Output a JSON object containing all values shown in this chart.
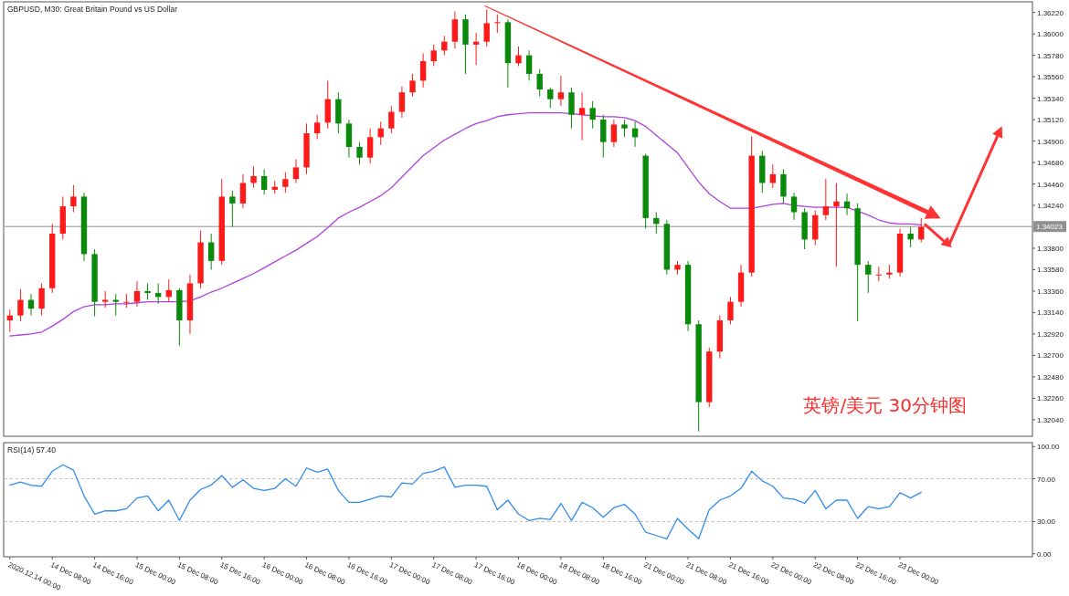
{
  "chart_data": [
    {
      "type": "candlestick",
      "title": "GBPUSD, M30:  Great Britain Pound vs US Dollar",
      "categories": [
        null,
        null,
        null,
        null,
        null,
        null,
        null,
        null,
        null,
        null,
        null,
        null,
        null,
        null,
        null,
        null,
        null,
        null,
        null,
        null,
        null,
        null,
        null,
        null,
        null,
        null,
        null,
        null,
        null,
        null,
        null,
        null,
        null,
        null,
        null,
        null,
        null,
        null,
        null,
        null,
        null,
        null,
        null,
        null,
        null,
        null,
        null,
        null,
        null,
        null,
        null,
        null,
        null,
        null,
        null,
        null,
        null,
        null,
        null,
        null,
        null,
        null,
        null,
        null,
        null,
        null,
        null,
        null,
        null,
        null,
        null,
        null,
        null,
        null,
        null,
        null,
        null,
        null,
        null,
        null,
        null,
        null,
        null,
        null,
        null,
        null,
        null,
        null,
        null,
        null,
        null,
        null,
        null,
        null,
        null,
        null,
        null
      ],
      "ohlc": [
        [
          1.3306,
          1.3317,
          1.3294,
          1.3311
        ],
        [
          1.3311,
          1.3338,
          1.3305,
          1.3327
        ],
        [
          1.3327,
          1.3333,
          1.3311,
          1.3318
        ],
        [
          1.3318,
          1.3344,
          1.3311,
          1.3339
        ],
        [
          1.3339,
          1.3405,
          1.3334,
          1.3395
        ],
        [
          1.3395,
          1.3433,
          1.3389,
          1.3423
        ],
        [
          1.3423,
          1.3445,
          1.3417,
          1.3433
        ],
        [
          1.3433,
          1.3437,
          1.3367,
          1.3374
        ],
        [
          1.3374,
          1.3379,
          1.331,
          1.3325
        ],
        [
          1.3325,
          1.3336,
          1.3319,
          1.3327
        ],
        [
          1.3327,
          1.3333,
          1.3311,
          1.3325
        ],
        [
          1.3325,
          1.3333,
          1.3319,
          1.3325
        ],
        [
          1.3325,
          1.3346,
          1.332,
          1.3336
        ],
        [
          1.3336,
          1.3344,
          1.3327,
          1.3334
        ],
        [
          1.3334,
          1.3344,
          1.3323,
          1.333
        ],
        [
          1.333,
          1.3348,
          1.3325,
          1.3337
        ],
        [
          1.3337,
          1.3339,
          1.328,
          1.3306
        ],
        [
          1.3306,
          1.3353,
          1.3292,
          1.3344
        ],
        [
          1.3344,
          1.3398,
          1.3339,
          1.3386
        ],
        [
          1.3386,
          1.3395,
          1.3358,
          1.3367
        ],
        [
          1.3367,
          1.3451,
          1.3363,
          1.3433
        ],
        [
          1.3433,
          1.3439,
          1.3402,
          1.3426
        ],
        [
          1.3426,
          1.3456,
          1.3421,
          1.3447
        ],
        [
          1.3447,
          1.3464,
          1.3442,
          1.3454
        ],
        [
          1.3454,
          1.3461,
          1.3435,
          1.344
        ],
        [
          1.344,
          1.3449,
          1.3436,
          1.3443
        ],
        [
          1.3443,
          1.3458,
          1.3437,
          1.3451
        ],
        [
          1.3451,
          1.3471,
          1.3447,
          1.3463
        ],
        [
          1.3463,
          1.3508,
          1.3456,
          1.3498
        ],
        [
          1.3498,
          1.3517,
          1.3492,
          1.3509
        ],
        [
          1.3509,
          1.3552,
          1.3503,
          1.3533
        ],
        [
          1.3533,
          1.354,
          1.3498,
          1.3508
        ],
        [
          1.3508,
          1.3512,
          1.3473,
          1.3484
        ],
        [
          1.3484,
          1.3489,
          1.3466,
          1.3473
        ],
        [
          1.3473,
          1.3503,
          1.3467,
          1.3494
        ],
        [
          1.3494,
          1.351,
          1.3486,
          1.3503
        ],
        [
          1.3503,
          1.3526,
          1.3498,
          1.352
        ],
        [
          1.352,
          1.3546,
          1.3514,
          1.354
        ],
        [
          1.354,
          1.3559,
          1.3536,
          1.3552
        ],
        [
          1.3552,
          1.358,
          1.3545,
          1.3572
        ],
        [
          1.3572,
          1.3589,
          1.3567,
          1.3583
        ],
        [
          1.3583,
          1.3598,
          1.3578,
          1.3592
        ],
        [
          1.3592,
          1.3623,
          1.3585,
          1.3615
        ],
        [
          1.3615,
          1.362,
          1.3559,
          1.3589
        ],
        [
          1.3589,
          1.3601,
          1.3568,
          1.3592
        ],
        [
          1.3592,
          1.3625,
          1.3587,
          1.3611
        ],
        [
          1.3611,
          1.362,
          1.3601,
          1.3612
        ],
        [
          1.3612,
          1.3615,
          1.3545,
          1.357
        ],
        [
          1.357,
          1.3587,
          1.3567,
          1.3578
        ],
        [
          1.3578,
          1.3583,
          1.3552,
          1.3559
        ],
        [
          1.3559,
          1.3564,
          1.3536,
          1.3543
        ],
        [
          1.3543,
          1.3545,
          1.3524,
          1.3533
        ],
        [
          1.3533,
          1.3557,
          1.3526,
          1.354
        ],
        [
          1.354,
          1.3545,
          1.3503,
          1.3517
        ],
        [
          1.3517,
          1.354,
          1.3491,
          1.3524
        ],
        [
          1.3524,
          1.3531,
          1.3503,
          1.3512
        ],
        [
          1.3512,
          1.3517,
          1.3473,
          1.3489
        ],
        [
          1.3489,
          1.3512,
          1.3484,
          1.3507
        ],
        [
          1.3507,
          1.3512,
          1.3494,
          1.3503
        ],
        [
          1.3503,
          1.351,
          1.3484,
          1.3494
        ],
        [
          1.3475,
          1.3477,
          1.34,
          1.3411
        ],
        [
          1.3411,
          1.3417,
          1.3395,
          1.3405
        ],
        [
          1.3405,
          1.3409,
          1.3353,
          1.3358
        ],
        [
          1.3358,
          1.3367,
          1.3353,
          1.3363
        ],
        [
          1.3363,
          1.3367,
          1.3295,
          1.3302
        ],
        [
          1.3302,
          1.3306,
          1.3192,
          1.3222
        ],
        [
          1.3222,
          1.3278,
          1.3217,
          1.3274
        ],
        [
          1.3274,
          1.3311,
          1.3267,
          1.3306
        ],
        [
          1.3306,
          1.333,
          1.3302,
          1.3325
        ],
        [
          1.3325,
          1.3363,
          1.332,
          1.3355
        ],
        [
          1.3355,
          1.3495,
          1.3351,
          1.3475
        ],
        [
          1.3475,
          1.348,
          1.3437,
          1.3447
        ],
        [
          1.3447,
          1.3466,
          1.3442,
          1.3456
        ],
        [
          1.3456,
          1.3461,
          1.3426,
          1.3433
        ],
        [
          1.3433,
          1.3437,
          1.3409,
          1.3417
        ],
        [
          1.3417,
          1.3421,
          1.3379,
          1.3389
        ],
        [
          1.3389,
          1.3419,
          1.3383,
          1.3414
        ],
        [
          1.3414,
          1.3451,
          1.3409,
          1.3423
        ],
        [
          1.3423,
          1.3447,
          1.3361,
          1.3428
        ],
        [
          1.3428,
          1.3436,
          1.3414,
          1.3421
        ],
        [
          1.3421,
          1.3426,
          1.3305,
          1.3363
        ],
        [
          1.3363,
          1.3367,
          1.3334,
          1.3353
        ],
        [
          1.3353,
          1.3361,
          1.3346,
          1.3353
        ],
        [
          1.3353,
          1.3363,
          1.3349,
          1.3355
        ],
        [
          1.3355,
          1.34,
          1.3351,
          1.3395
        ],
        [
          1.3395,
          1.3402,
          1.3381,
          1.3389
        ],
        [
          1.3389,
          1.3411,
          1.3386,
          1.3402
        ],
        null,
        null,
        null,
        null,
        null,
        null,
        null,
        null,
        null,
        null
      ],
      "series": [
        {
          "type": "line",
          "color": "#b040e0",
          "values": [
            1.329,
            1.3291,
            1.3292,
            1.3294,
            1.33,
            1.3307,
            1.3315,
            1.332,
            1.3322,
            1.3322,
            1.3323,
            1.3323,
            1.3324,
            1.3325,
            1.3325,
            1.3325,
            1.3325,
            1.3326,
            1.333,
            1.3335,
            1.3339,
            1.3344,
            1.3349,
            1.3354,
            1.336,
            1.3366,
            1.3372,
            1.3378,
            1.3385,
            1.3392,
            1.3401,
            1.3411,
            1.3417,
            1.3422,
            1.3428,
            1.3434,
            1.3442,
            1.3453,
            1.3464,
            1.3475,
            1.3483,
            1.3491,
            1.3497,
            1.3503,
            1.3508,
            1.3511,
            1.3515,
            1.3517,
            1.3518,
            1.3519,
            1.3519,
            1.3519,
            1.3519,
            1.3518,
            1.3517,
            1.3516,
            1.3515,
            1.3515,
            1.3514,
            1.3511,
            1.3505,
            1.3496,
            1.3487,
            1.3478,
            1.3463,
            1.3448,
            1.3436,
            1.3428,
            1.3421,
            1.3421,
            1.3421,
            1.3423,
            1.3425,
            1.3426,
            1.3424,
            1.3423,
            1.3422,
            1.3422,
            1.3422,
            1.3422,
            1.3418,
            1.3414,
            1.3409,
            1.3406,
            1.3405,
            1.3405,
            1.3404,
            null,
            null,
            null,
            null,
            null,
            null,
            null,
            null,
            null,
            null
          ]
        }
      ],
      "ylim": [
        1.3187,
        1.3632
      ],
      "yticks": [
        {
          "value": 1.3622,
          "label": "1.36220"
        },
        {
          "value": 1.36,
          "label": "1.36000"
        },
        {
          "value": 1.3578,
          "label": "1.35780"
        },
        {
          "value": 1.3556,
          "label": "1.35560"
        },
        {
          "value": 1.3534,
          "label": "1.35340"
        },
        {
          "value": 1.3512,
          "label": "1.35120"
        },
        {
          "value": 1.349,
          "label": "1.34900"
        },
        {
          "value": 1.3468,
          "label": "1.34680"
        },
        {
          "value": 1.3446,
          "label": "1.34460"
        },
        {
          "value": 1.3424,
          "label": "1.34240"
        },
        {
          "value": 1.338,
          "label": "1.33800"
        },
        {
          "value": 1.3358,
          "label": "1.33580"
        },
        {
          "value": 1.3336,
          "label": "1.33360"
        },
        {
          "value": 1.3314,
          "label": "1.33140"
        },
        {
          "value": 1.3292,
          "label": "1.32920"
        },
        {
          "value": 1.327,
          "label": "1.32700"
        },
        {
          "value": 1.3248,
          "label": "1.32480"
        },
        {
          "value": 1.3226,
          "label": "1.32260"
        },
        {
          "value": 1.3204,
          "label": "1.32040"
        }
      ],
      "tick_labels": "y",
      "ref_lines": [
        {
          "axis": "y",
          "value": 1.34023,
          "label": "1.34023",
          "color": "#909090"
        }
      ],
      "annotations": [
        "英镑/美元 30分钟图"
      ]
    },
    {
      "type": "line",
      "title": "RSI(14) 57.40",
      "categories": [
        "2020.12.14 00:00",
        null,
        null,
        null,
        "14 Dec 08:00",
        null,
        null,
        null,
        "14 Dec 16:00",
        null,
        null,
        null,
        "15 Dec 00:00",
        null,
        null,
        null,
        "15 Dec 08:00",
        null,
        null,
        null,
        "15 Dec 16:00",
        null,
        null,
        null,
        "16 Dec 00:00",
        null,
        null,
        null,
        "16 Dec 08:00",
        null,
        null,
        null,
        "16 Dec 16:00",
        null,
        null,
        null,
        "17 Dec 00:00",
        null,
        null,
        null,
        "17 Dec 08:00",
        null,
        null,
        null,
        "17 Dec 16:00",
        null,
        null,
        null,
        "18 Dec 00:00",
        null,
        null,
        null,
        "18 Dec 08:00",
        null,
        null,
        null,
        "18 Dec 16:00",
        null,
        null,
        null,
        "21 Dec 00:00",
        null,
        null,
        null,
        "21 Dec 08:00",
        null,
        null,
        null,
        "21 Dec 16:00",
        null,
        null,
        null,
        "22 Dec 00:00",
        null,
        null,
        null,
        "22 Dec 08:00",
        null,
        null,
        null,
        "22 Dec 16:00",
        null,
        null,
        null,
        "23 Dec 00:00",
        null,
        null,
        null,
        null,
        null,
        null,
        null,
        null,
        null,
        null,
        null,
        null
      ],
      "series": [
        {
          "color": "#2f8cf0",
          "values": [
            64,
            67,
            64,
            63,
            77,
            83,
            78,
            54,
            37,
            40,
            40,
            42,
            52,
            54,
            40,
            50,
            31,
            50,
            60,
            64,
            73,
            62,
            69,
            61,
            59,
            61,
            70,
            63,
            80,
            76,
            79,
            59,
            48,
            48,
            51,
            54,
            53,
            66,
            65,
            75,
            77,
            81,
            62,
            64,
            64,
            63,
            41,
            50,
            37,
            31,
            33,
            32,
            47,
            31,
            48,
            43,
            34,
            43,
            46,
            37,
            20,
            17,
            14,
            33,
            23,
            14,
            41,
            50,
            54,
            61,
            77,
            68,
            63,
            52,
            51,
            47,
            59,
            42,
            50,
            50,
            33,
            44,
            42,
            44,
            57,
            52,
            57.4,
            null,
            null,
            null,
            null,
            null,
            null,
            null,
            null,
            null,
            null
          ]
        }
      ],
      "ylim": [
        -2.8,
        102.8
      ],
      "yticks": [
        {
          "value": 100,
          "label": "100.00"
        },
        {
          "value": 70,
          "label": "70.00"
        },
        {
          "value": 30,
          "label": "30.00"
        },
        {
          "value": 0,
          "label": "0.00"
        }
      ],
      "ref_lines": [
        {
          "axis": "y",
          "value": 70,
          "line_style": "dashed",
          "color": "#c0c0c0"
        },
        {
          "axis": "y",
          "value": 30,
          "line_style": "dashed",
          "color": "#c0c0c0"
        }
      ]
    }
  ]
}
